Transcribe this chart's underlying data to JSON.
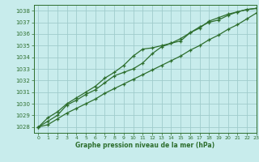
{
  "xlabel": "Graphe pression niveau de la mer (hPa)",
  "bg_color": "#c8ecec",
  "grid_color": "#a0cccc",
  "line_color": "#2d6e2d",
  "xlim": [
    -0.5,
    23
  ],
  "ylim": [
    1027.5,
    1038.5
  ],
  "yticks": [
    1028,
    1029,
    1030,
    1031,
    1032,
    1033,
    1034,
    1035,
    1036,
    1037,
    1038
  ],
  "xticks": [
    0,
    1,
    2,
    3,
    4,
    5,
    6,
    7,
    8,
    9,
    10,
    11,
    12,
    13,
    14,
    15,
    16,
    17,
    18,
    19,
    20,
    21,
    22,
    23
  ],
  "line1": [
    1028.0,
    1028.8,
    1029.3,
    1030.0,
    1030.5,
    1031.0,
    1031.5,
    1032.2,
    1032.7,
    1033.3,
    1034.1,
    1034.7,
    1034.8,
    1035.0,
    1035.2,
    1035.4,
    1036.1,
    1036.6,
    1037.0,
    1037.2,
    1037.6,
    1037.9,
    1038.1,
    1038.2
  ],
  "line2": [
    1028.0,
    1028.5,
    1029.0,
    1029.9,
    1030.3,
    1030.8,
    1031.2,
    1031.8,
    1032.4,
    1032.7,
    1033.0,
    1033.5,
    1034.3,
    1034.9,
    1035.2,
    1035.6,
    1036.1,
    1036.5,
    1037.1,
    1037.4,
    1037.7,
    1037.9,
    1038.1,
    1038.2
  ],
  "line3": [
    1028.0,
    1028.2,
    1028.7,
    1029.2,
    1029.6,
    1030.0,
    1030.4,
    1030.9,
    1031.3,
    1031.7,
    1032.1,
    1032.5,
    1032.9,
    1033.3,
    1033.7,
    1034.1,
    1034.6,
    1035.0,
    1035.5,
    1035.9,
    1036.4,
    1036.8,
    1037.3,
    1037.8
  ]
}
